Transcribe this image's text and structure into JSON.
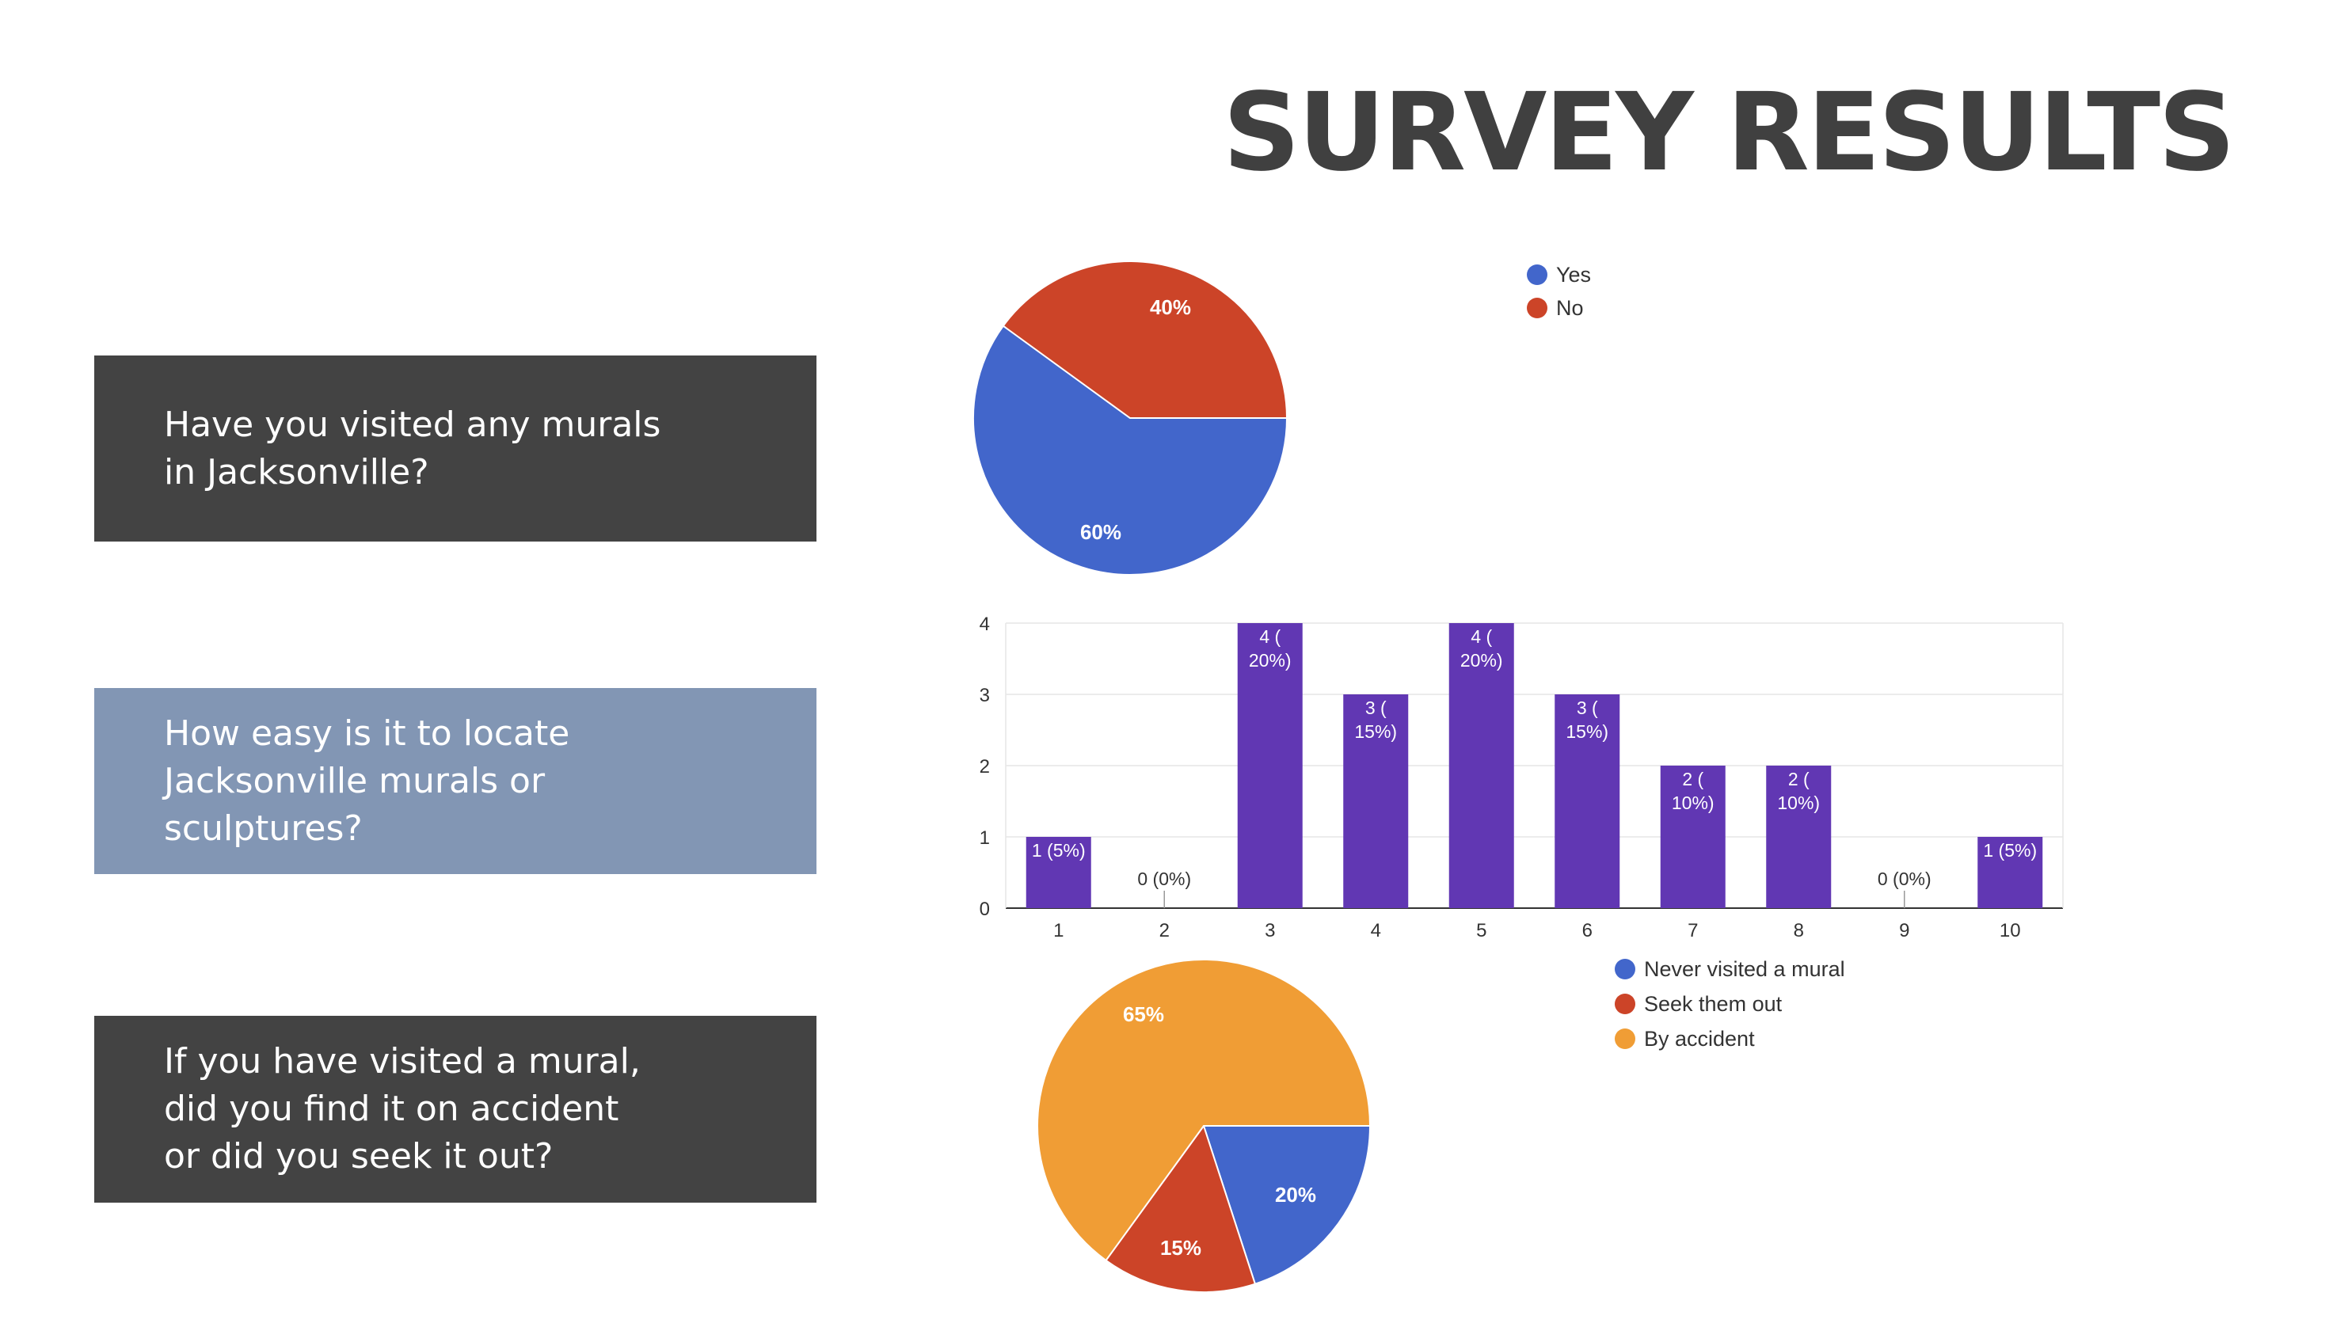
{
  "title": "SURVEY RESULTS",
  "questions": [
    {
      "lines": [
        "Have you visited any murals",
        "in Jacksonville?"
      ]
    },
    {
      "lines": [
        "How easy is it to locate",
        "Jacksonville murals or",
        "sculptures?"
      ]
    },
    {
      "lines": [
        "If you have visited a mural,",
        "did you find it on accident",
        "or did you seek it out?"
      ]
    }
  ],
  "colors": {
    "blue": "#4266cb",
    "red": "#cc4428",
    "orange": "#f09d35",
    "purple": "#6137b3",
    "q_dark": "#434343",
    "q_light": "#8296b4"
  },
  "chart_data": [
    {
      "type": "pie",
      "slices": [
        {
          "label": "Yes",
          "value": 60,
          "display": "60%",
          "color": "#4266cb"
        },
        {
          "label": "No",
          "value": 40,
          "display": "40%",
          "color": "#cc4428"
        }
      ],
      "legend_position": "right"
    },
    {
      "type": "bar",
      "categories": [
        "1",
        "2",
        "3",
        "4",
        "5",
        "6",
        "7",
        "8",
        "9",
        "10"
      ],
      "values": [
        1,
        0,
        4,
        3,
        4,
        3,
        2,
        2,
        0,
        1
      ],
      "data_labels": [
        [
          "1 (5%)"
        ],
        [
          "0 (0%)"
        ],
        [
          "4 (",
          "20%)"
        ],
        [
          "3 (",
          "15%)"
        ],
        [
          "4 (",
          "20%)"
        ],
        [
          "3 (",
          "15%)"
        ],
        [
          "2 (",
          "10%)"
        ],
        [
          "2 (",
          "10%)"
        ],
        [
          "0 (0%)"
        ],
        [
          "1 (5%)"
        ]
      ],
      "y_ticks": [
        "0",
        "1",
        "2",
        "3",
        "4"
      ],
      "ylim": [
        0,
        4
      ],
      "grid": true,
      "color": "#6137b3"
    },
    {
      "type": "pie",
      "slices": [
        {
          "label": "Never visited a mural",
          "value": 20,
          "display": "20%",
          "color": "#4266cb"
        },
        {
          "label": "Seek them out",
          "value": 15,
          "display": "15%",
          "color": "#cc4428"
        },
        {
          "label": "By accident",
          "value": 65,
          "display": "65%",
          "color": "#f09d35"
        }
      ],
      "legend_position": "right"
    }
  ]
}
